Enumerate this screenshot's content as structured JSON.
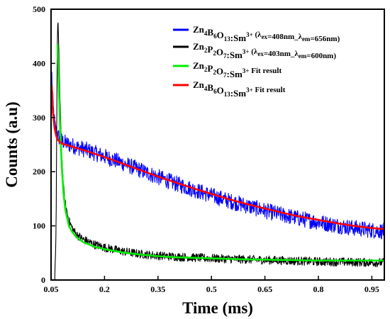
{
  "chart_data": {
    "type": "line",
    "title": "",
    "xlabel": "Time (ms)",
    "ylabel": "Counts (a.u)",
    "xlim": [
      0.05,
      0.985
    ],
    "ylim": [
      0,
      500
    ],
    "x_ticks": [
      0.05,
      0.2,
      0.35,
      0.5,
      0.65,
      0.8,
      0.95
    ],
    "x_tick_labels": [
      "0.05",
      "0.2",
      "0.35",
      "0.5",
      "0.65",
      "0.8",
      "0.95"
    ],
    "y_ticks": [
      0,
      100,
      200,
      300,
      400,
      500
    ],
    "y_tick_labels": [
      "0",
      "100",
      "200",
      "300",
      "400",
      "500"
    ],
    "legend_position": "top-right",
    "series": [
      {
        "name": "Zn4B6O13:Sm3+ (λex=408nm_λem=656nm)",
        "color": "#0000ff",
        "style": "noisy",
        "noise_amplitude": 15,
        "x": [
          0.052,
          0.055,
          0.058,
          0.062,
          0.068,
          0.075,
          0.085,
          0.1,
          0.12,
          0.15,
          0.2,
          0.25,
          0.3,
          0.35,
          0.4,
          0.45,
          0.5,
          0.55,
          0.6,
          0.65,
          0.7,
          0.75,
          0.8,
          0.85,
          0.9,
          0.95,
          0.985
        ],
        "y": [
          380,
          330,
          300,
          280,
          268,
          260,
          255,
          250,
          246,
          240,
          228,
          216,
          203,
          190,
          178,
          167,
          156,
          146,
          137,
          128,
          120,
          113,
          107,
          101,
          96,
          92,
          90
        ]
      },
      {
        "name": "Zn2P2O7:Sm3+ (λex=403nm_λem=600nm)",
        "color": "#000000",
        "style": "noisy",
        "noise_amplitude": 8,
        "x": [
          0.05,
          0.06,
          0.064,
          0.066,
          0.068,
          0.07,
          0.072,
          0.075,
          0.08,
          0.085,
          0.09,
          0.1,
          0.11,
          0.12,
          0.14,
          0.17,
          0.2,
          0.25,
          0.3,
          0.35,
          0.4,
          0.5,
          0.6,
          0.7,
          0.8,
          0.9,
          0.985
        ],
        "y": [
          0,
          0,
          80,
          300,
          460,
          470,
          420,
          330,
          230,
          170,
          140,
          110,
          95,
          85,
          75,
          66,
          60,
          53,
          48,
          45,
          43,
          40,
          38,
          36,
          34,
          33,
          32
        ]
      },
      {
        "name": "Zn2P2O7:Sm3+ Fit result",
        "color": "#00ee00",
        "style": "smooth",
        "x": [
          0.068,
          0.07,
          0.072,
          0.075,
          0.08,
          0.085,
          0.09,
          0.1,
          0.11,
          0.12,
          0.14,
          0.17,
          0.2,
          0.25,
          0.3,
          0.35,
          0.4,
          0.5,
          0.6,
          0.7,
          0.8,
          0.9,
          0.985
        ],
        "y": [
          435,
          400,
          350,
          290,
          210,
          160,
          130,
          100,
          88,
          80,
          70,
          62,
          57,
          51,
          47,
          44,
          42,
          40,
          38,
          37,
          36,
          36,
          36
        ]
      },
      {
        "name": "Zn4B6O13:Sm3+ Fit result",
        "color": "#ff0000",
        "style": "smooth",
        "x": [
          0.052,
          0.055,
          0.06,
          0.065,
          0.07,
          0.08,
          0.09,
          0.1,
          0.12,
          0.15,
          0.2,
          0.25,
          0.3,
          0.35,
          0.4,
          0.45,
          0.5,
          0.55,
          0.6,
          0.65,
          0.7,
          0.75,
          0.8,
          0.85,
          0.9,
          0.95,
          0.985
        ],
        "y": [
          358,
          310,
          280,
          265,
          258,
          252,
          250,
          248,
          244,
          238,
          227,
          215,
          203,
          191,
          180,
          169,
          159,
          149,
          140,
          132,
          124,
          117,
          111,
          105,
          100,
          96,
          94
        ]
      }
    ]
  },
  "legend": [
    {
      "color": "#0000ff",
      "parts": [
        [
          "m",
          "Zn"
        ],
        [
          "s",
          "4"
        ],
        [
          "m",
          "B"
        ],
        [
          "s",
          "6"
        ],
        [
          "m",
          "O"
        ],
        [
          "s",
          "13"
        ],
        [
          "m",
          ":Sm"
        ],
        [
          "p",
          "3+"
        ],
        [
          "c",
          " (λ"
        ],
        [
          "cs",
          "ex"
        ],
        [
          "c",
          "=408nm_λ"
        ],
        [
          "cs",
          "em"
        ],
        [
          "c",
          "=656nm)"
        ]
      ]
    },
    {
      "color": "#000000",
      "parts": [
        [
          "m",
          "Zn"
        ],
        [
          "s",
          "2"
        ],
        [
          "m",
          "P"
        ],
        [
          "s",
          "2"
        ],
        [
          "m",
          "O"
        ],
        [
          "s",
          "7"
        ],
        [
          "m",
          ":Sm"
        ],
        [
          "p",
          "3+"
        ],
        [
          "c",
          " (λ"
        ],
        [
          "cs",
          "ex"
        ],
        [
          "c",
          "=403nm_λ"
        ],
        [
          "cs",
          "em"
        ],
        [
          "c",
          "=600nm)"
        ]
      ]
    },
    {
      "color": "#00ee00",
      "parts": [
        [
          "m",
          "Zn"
        ],
        [
          "s",
          "2"
        ],
        [
          "m",
          "P"
        ],
        [
          "s",
          "2"
        ],
        [
          "m",
          "O"
        ],
        [
          "s",
          "7"
        ],
        [
          "m",
          ":Sm"
        ],
        [
          "p",
          "3+"
        ],
        [
          "c",
          " Fit result"
        ]
      ]
    },
    {
      "color": "#ff0000",
      "parts": [
        [
          "m",
          "Zn"
        ],
        [
          "s",
          "4"
        ],
        [
          "m",
          "B"
        ],
        [
          "s",
          "6"
        ],
        [
          "m",
          "O"
        ],
        [
          "s",
          "13"
        ],
        [
          "m",
          ":Sm"
        ],
        [
          "p",
          "3+"
        ],
        [
          "c",
          " Fit result"
        ]
      ]
    }
  ]
}
